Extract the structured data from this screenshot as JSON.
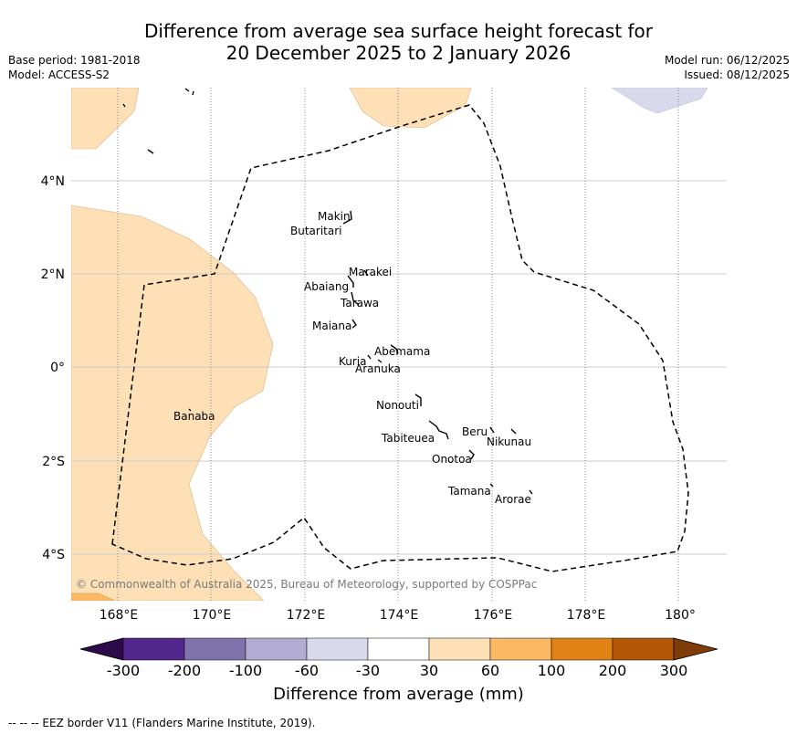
{
  "header": {
    "title_line1": "Difference from average sea surface height forecast for",
    "title_line2": "20 December 2025 to 2 January 2026",
    "base_period": "Base period: 1981-2018",
    "model": "Model: ACCESS-S2",
    "model_run": "Model run: 06/12/2025",
    "issued": "Issued: 08/12/2025"
  },
  "map": {
    "lat_labels": [
      "4°N",
      "2°N",
      "0°",
      "2°S",
      "4°S"
    ],
    "lon_labels": [
      "168°E",
      "170°E",
      "172°E",
      "174°E",
      "176°E",
      "178°E",
      "180°"
    ],
    "places": {
      "makin": "Makin",
      "butaritari": "Butaritari",
      "marakei": "Marakei",
      "abaiang": "Abaiang",
      "tarawa": "Tarawa",
      "maiana": "Maiana",
      "abemama": "Abemama",
      "kuria": "Kuria",
      "aranuka": "Aranuka",
      "nonouti": "Nonouti",
      "banaba": "Banaba",
      "tabiteuea": "Tabiteuea",
      "beru": "Beru",
      "nikunau": "Nikunau",
      "onotoa": "Onotoa",
      "tamana": "Tamana",
      "arorae": "Arorae"
    },
    "credit": "© Commonwealth of Australia 2025, Bureau of Meteorology, supported by COSPPac"
  },
  "colorbar": {
    "ticks": [
      "-300",
      "-200",
      "-100",
      "-60",
      "-30",
      "30",
      "60",
      "100",
      "200",
      "300"
    ],
    "colors": [
      "#2d0a4a",
      "#54278f",
      "#8073ac",
      "#b2abd2",
      "#d8daeb",
      "#ffffff",
      "#fee0b6",
      "#fdb863",
      "#e08214",
      "#b35806",
      "#7f3b08"
    ],
    "label": "Difference from average (mm)"
  },
  "footer": {
    "eez_note": "-- -- -- EEZ border V11 (Flanders Marine Institute, 2019)."
  }
}
